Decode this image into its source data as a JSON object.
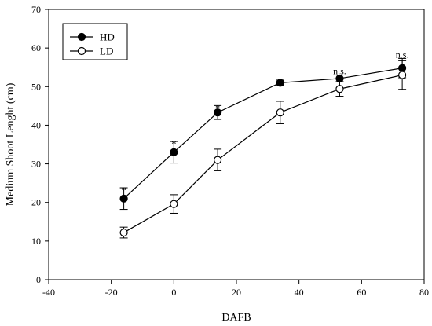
{
  "chart_data": {
    "type": "line",
    "title": "",
    "xlabel": "DAFB",
    "ylabel": "Medium Shoot Lenght (cm)",
    "xlim": [
      -40,
      80
    ],
    "ylim": [
      0,
      70
    ],
    "xticks": [
      -40,
      -20,
      0,
      20,
      40,
      60,
      80
    ],
    "yticks": [
      0,
      10,
      20,
      30,
      40,
      50,
      60,
      70
    ],
    "grid": false,
    "legend_position": "top-left",
    "series": [
      {
        "name": "HD",
        "marker": "filled-circle",
        "points": [
          {
            "x": -16,
            "y": 21.0,
            "err": 2.8
          },
          {
            "x": 0,
            "y": 33.0,
            "err": 2.8
          },
          {
            "x": 14,
            "y": 43.3,
            "err": 1.8
          },
          {
            "x": 34,
            "y": 51.0,
            "err": 0.7
          },
          {
            "x": 53,
            "y": 52.1,
            "err": 0.9
          },
          {
            "x": 73,
            "y": 54.8,
            "err": 2.5
          }
        ]
      },
      {
        "name": "LD",
        "marker": "open-circle",
        "points": [
          {
            "x": -16,
            "y": 12.2,
            "err": 1.4
          },
          {
            "x": 0,
            "y": 19.6,
            "err": 2.4
          },
          {
            "x": 14,
            "y": 31.0,
            "err": 2.8
          },
          {
            "x": 34,
            "y": 43.3,
            "err": 2.9
          },
          {
            "x": 53,
            "y": 49.4,
            "err": 1.9
          },
          {
            "x": 73,
            "y": 53.0,
            "err": 3.7
          }
        ]
      }
    ],
    "annotations": [
      {
        "x": -16,
        "y": 24.0,
        "text": "*"
      },
      {
        "x": 0,
        "y": 36.0,
        "text": "*"
      },
      {
        "x": 14,
        "y": 45.3,
        "text": "*"
      },
      {
        "x": 34,
        "y": 51.9,
        "text": "*"
      },
      {
        "x": 53,
        "y": 53.2,
        "text": "n.s."
      },
      {
        "x": 73,
        "y": 57.5,
        "text": "n.s."
      }
    ]
  }
}
